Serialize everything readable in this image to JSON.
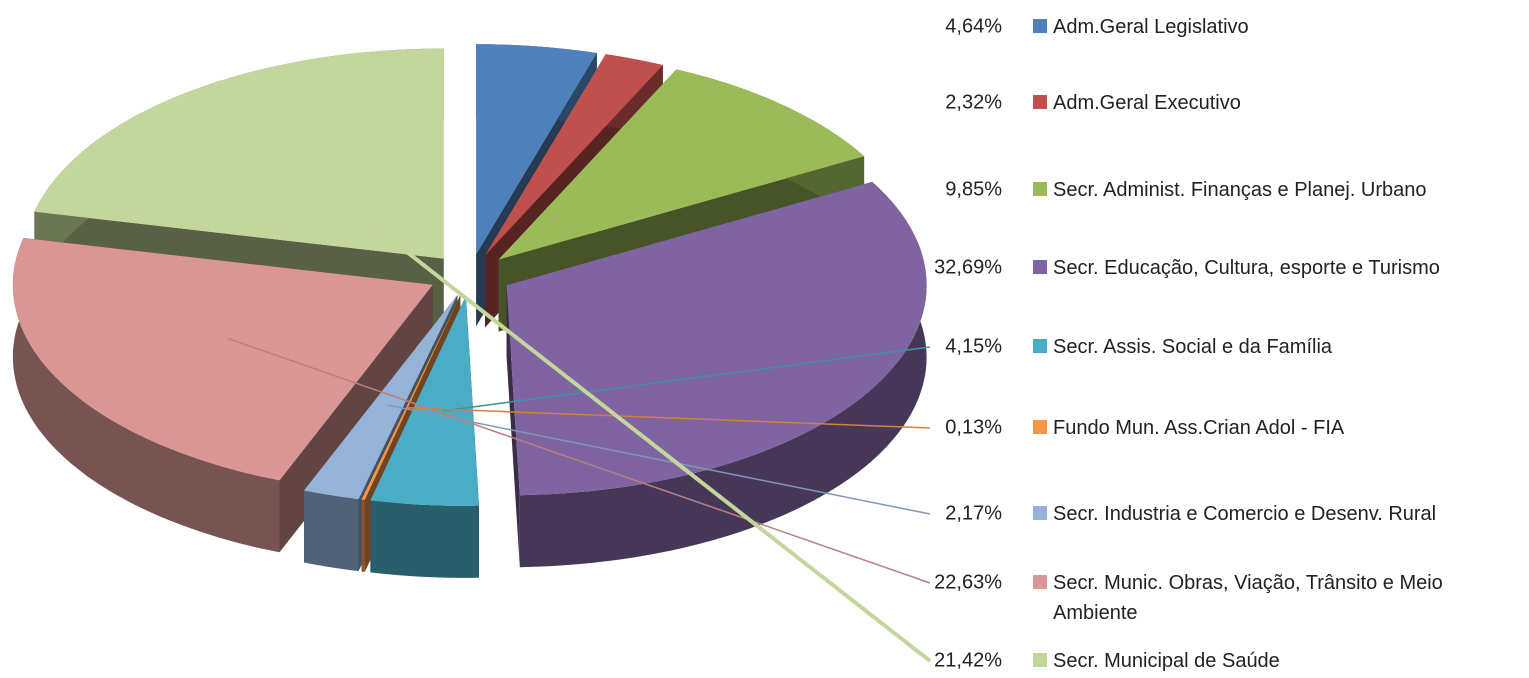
{
  "chart_data": {
    "type": "pie",
    "categories": [
      "Adm.Geral Legislativo",
      "Adm.Geral Executivo",
      "Secr. Administ. Finanças e Planej. Urbano",
      "Secr. Educação, Cultura, esporte e Turismo",
      "Secr. Assis. Social e da Família",
      "Fundo Mun. Ass.Crian Adol - FIA",
      "Secr. Industria e Comercio e Desenv. Rural",
      "Secr. Munic. Obras, Viação, Trânsito e Meio Ambiente",
      "Secr. Municipal de Saúde"
    ],
    "values": [
      4.64,
      2.32,
      9.85,
      32.69,
      4.15,
      0.13,
      2.17,
      22.63,
      21.42
    ],
    "value_labels": [
      "4,64%",
      "2,32%",
      "9,85%",
      "32,69%",
      "4,15%",
      "0,13%",
      "2,17%",
      "22,63%",
      "21,42%"
    ],
    "colors": [
      "#4f81bd",
      "#c0504d",
      "#9bbb59",
      "#8064a2",
      "#4bacc6",
      "#f79646",
      "#95b3d7",
      "#d99694",
      "#c3d69b"
    ],
    "legend": "right"
  }
}
